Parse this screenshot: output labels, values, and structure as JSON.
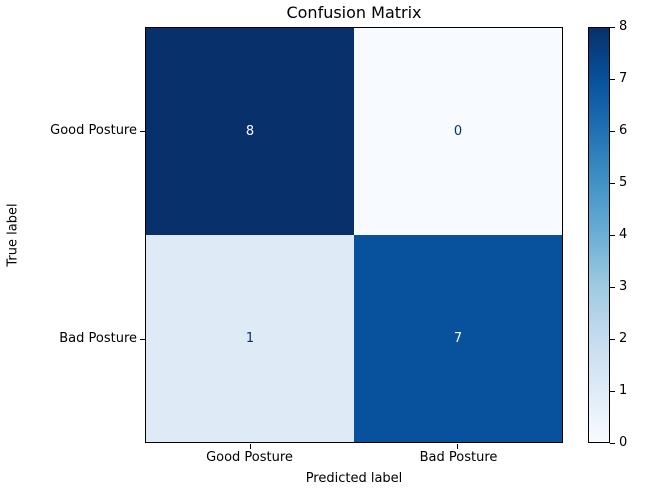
{
  "chart_data": {
    "type": "heatmap",
    "title": "Confusion Matrix",
    "xlabel": "Predicted label",
    "ylabel": "True label",
    "x_categories": [
      "Good Posture",
      "Bad Posture"
    ],
    "y_categories": [
      "Good Posture",
      "Bad Posture"
    ],
    "matrix": [
      [
        8,
        0
      ],
      [
        1,
        7
      ]
    ],
    "vmin": 0,
    "vmax": 8,
    "colormap": "Blues",
    "colorbar_position": "right",
    "colorbar_ticks": [
      "0",
      "1",
      "2",
      "3",
      "4",
      "5",
      "6",
      "7",
      "8"
    ],
    "grid": false
  },
  "cells": [
    {
      "value": "8",
      "bg": "#08306b",
      "fg": "#f7fbff"
    },
    {
      "value": "0",
      "bg": "#f7fbff",
      "fg": "#08306b"
    },
    {
      "value": "1",
      "bg": "#deebf7",
      "fg": "#08306b"
    },
    {
      "value": "7",
      "bg": "#08519c",
      "fg": "#f7fbff"
    }
  ],
  "colors": {
    "background": "#ffffff",
    "spine": "#000000",
    "text": "#000000",
    "colormap_stops": [
      "#f7fbff",
      "#deebf7",
      "#c6dbef",
      "#9ecae1",
      "#6baed6",
      "#4292c6",
      "#2171b5",
      "#08519c",
      "#08306b"
    ]
  }
}
